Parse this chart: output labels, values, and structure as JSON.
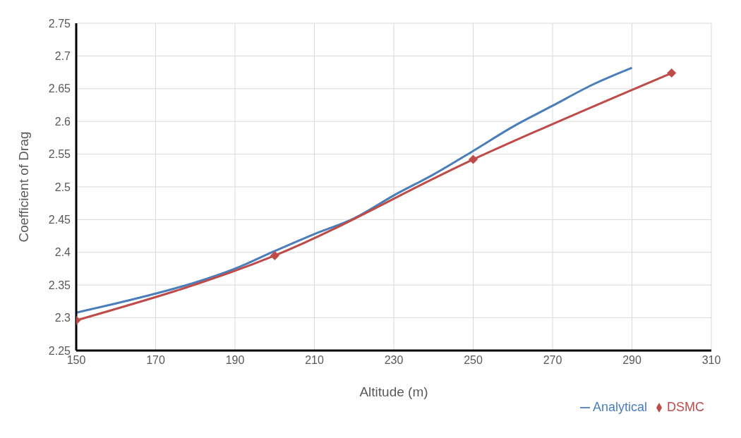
{
  "chart_data": {
    "type": "line",
    "xlabel": "Altitude (m)",
    "ylabel": "Coefficient of Drag",
    "xlim": [
      150,
      310
    ],
    "xticks": [
      150,
      170,
      190,
      210,
      230,
      250,
      270,
      290,
      310
    ],
    "ylim": [
      2.25,
      2.75
    ],
    "yticks": [
      2.25,
      2.3,
      2.35,
      2.4,
      2.45,
      2.5,
      2.55,
      2.6,
      2.65,
      2.7,
      2.75
    ],
    "grid": true,
    "legend": "bottom right",
    "line_style": "solid",
    "series": [
      {
        "name": "Analytical",
        "color": "#4a7ebb",
        "marker": "none",
        "x": [
          150,
          160,
          170,
          180,
          190,
          200,
          210,
          220,
          230,
          240,
          250,
          260,
          270,
          280,
          290
        ],
        "values": [
          2.308,
          2.322,
          2.337,
          2.354,
          2.375,
          2.402,
          2.428,
          2.452,
          2.487,
          2.519,
          2.555,
          2.592,
          2.624,
          2.656,
          2.682
        ]
      },
      {
        "name": "DSMC",
        "color": "#be4b48",
        "marker": "diamond",
        "x": [
          150,
          200,
          250,
          300
        ],
        "values": [
          2.296,
          2.395,
          2.542,
          2.674
        ]
      }
    ]
  }
}
